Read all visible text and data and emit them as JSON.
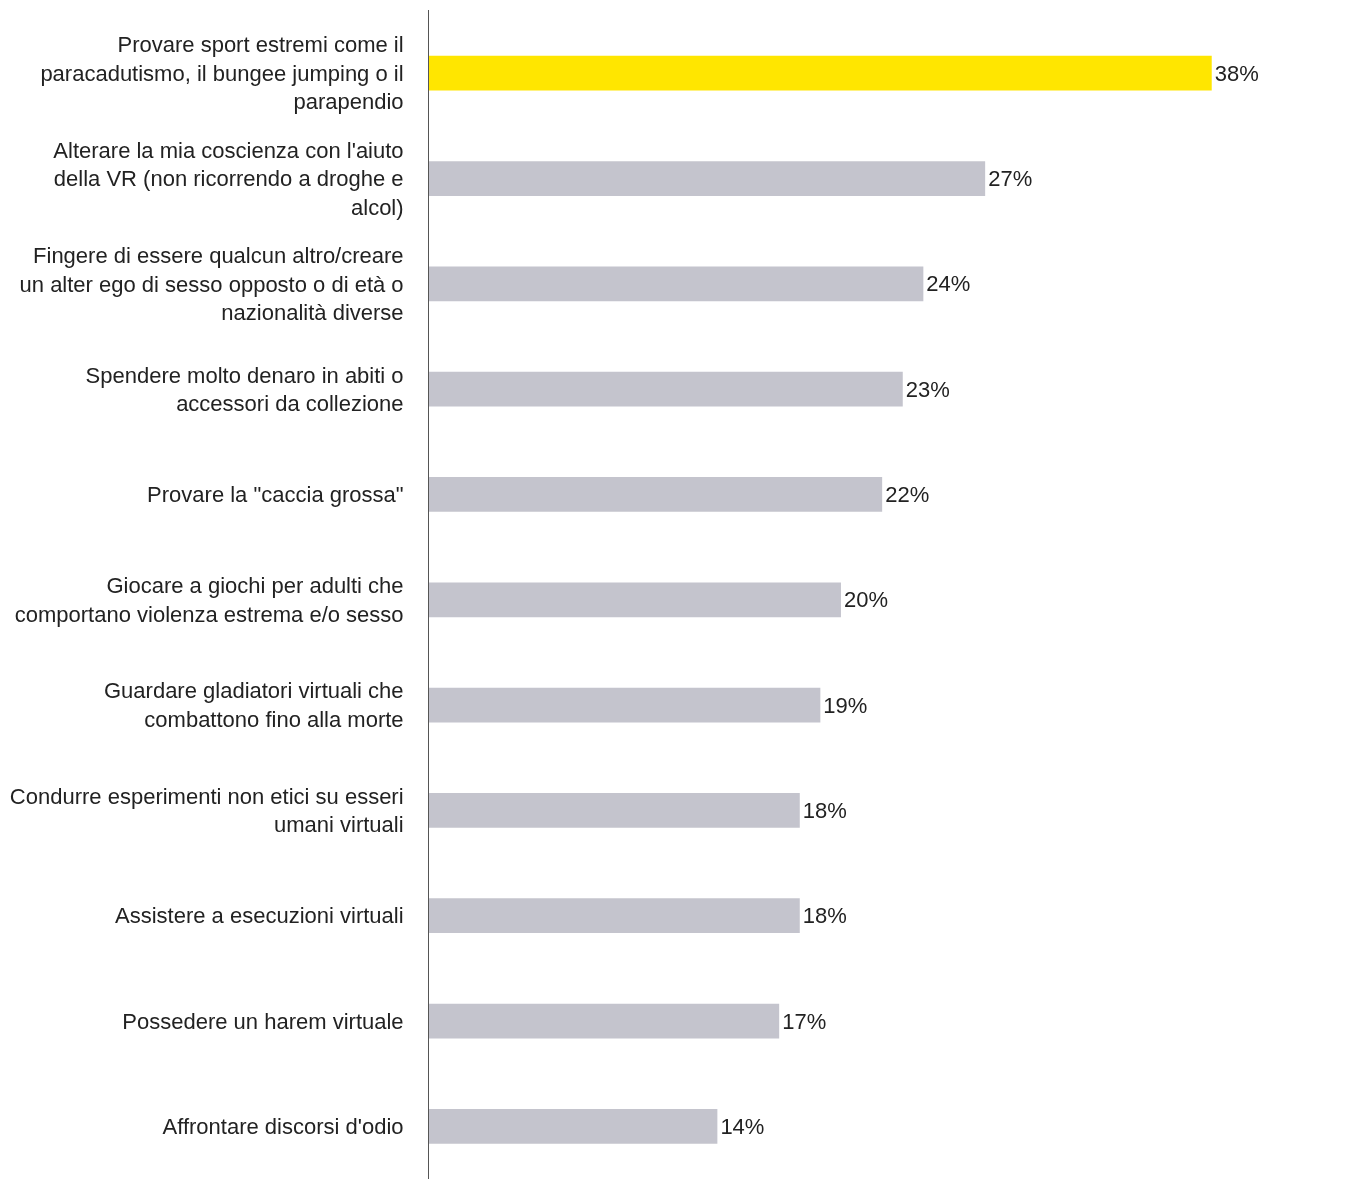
{
  "chart_data": {
    "type": "bar",
    "orientation": "horizontal",
    "categories": [
      "Provare sport estremi come il paracadutismo, il bungee jumping o il parapendio",
      "Alterare la mia coscienza con l'aiuto della VR (non ricorrendo a droghe e alcol)",
      "Fingere di essere qualcun altro/creare un alter ego di sesso opposto o di età o nazionalità diverse",
      "Spendere molto denaro in abiti o accessori da collezione",
      "Provare la \"caccia grossa\"",
      "Giocare a giochi per adulti che comportano violenza estrema e/o sesso",
      "Guardare gladiatori virtuali che combattono fino alla morte",
      "Condurre esperimenti non etici su esseri umani virtuali",
      "Assistere a esecuzioni virtuali",
      "Possedere un harem virtuale",
      "Affrontare discorsi d'odio"
    ],
    "values": [
      38,
      27,
      24,
      23,
      22,
      20,
      19,
      18,
      18,
      17,
      14
    ],
    "colors": [
      "#ffe600",
      "#c4c4cd",
      "#c4c4cd",
      "#c4c4cd",
      "#c4c4cd",
      "#c4c4cd",
      "#c4c4cd",
      "#c4c4cd",
      "#c4c4cd",
      "#c4c4cd",
      "#c4c4cd"
    ],
    "value_labels": [
      "38%",
      "27%",
      "24%",
      "23%",
      "22%",
      "20%",
      "19%",
      "18%",
      "18%",
      "17%",
      "14%"
    ],
    "data_labels": true
  }
}
